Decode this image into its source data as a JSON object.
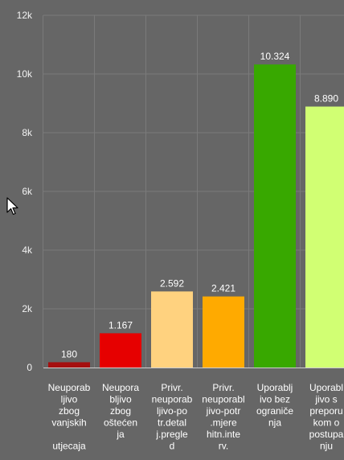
{
  "chart_data": {
    "type": "bar",
    "categories": [
      [
        "Neuporab",
        "ljivo",
        "zbog",
        "vanjskih",
        "",
        "utjecaja"
      ],
      [
        "Neupora",
        "bljivo",
        "zbog",
        "oštećen",
        "ja"
      ],
      [
        "Privr.",
        "neuporab",
        "ljivo-po",
        "tr.detal",
        "j.pregle",
        "d"
      ],
      [
        "Privr.",
        "neuporabl",
        "jivo-potr",
        ".mjere",
        "hitn.inte",
        "rv."
      ],
      [
        "Uporablj",
        "ivo bez",
        "ograniče",
        "nja"
      ],
      [
        "Uporabl",
        "jivo s",
        "preporu",
        "kom o",
        "postupa",
        "nju"
      ]
    ],
    "values": [
      180,
      1167,
      2592,
      2421,
      10324,
      8890
    ],
    "data_labels": [
      "180",
      "1.167",
      "2.592",
      "2.421",
      "10.324",
      "8.890"
    ],
    "colors": [
      "#a50f0f",
      "#e60000",
      "#ffd27f",
      "#ffaa00",
      "#38a800",
      "#d1ff73"
    ],
    "ylim": [
      0,
      12000
    ],
    "yticks": [
      0,
      2000,
      4000,
      6000,
      8000,
      10000,
      12000
    ],
    "ytick_labels": [
      "0",
      "2k",
      "4k",
      "6k",
      "8k",
      "10k",
      "12k"
    ],
    "grid": true,
    "title": "",
    "xlabel": "",
    "ylabel": ""
  },
  "icons": {
    "cursor": "mouse-pointer-icon"
  }
}
